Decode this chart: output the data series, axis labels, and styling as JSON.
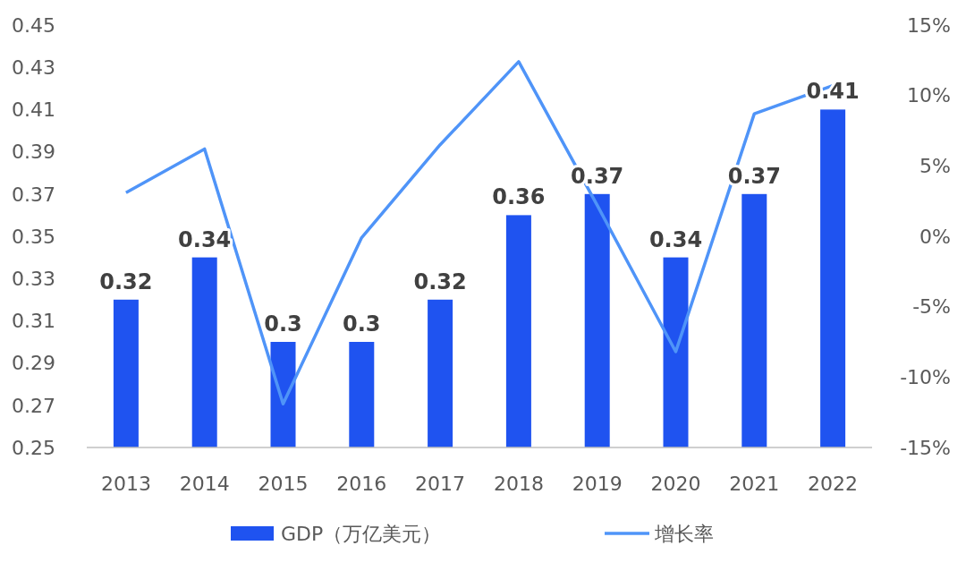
{
  "chart_data": {
    "type": "bar",
    "categories": [
      "2013",
      "2014",
      "2015",
      "2016",
      "2017",
      "2018",
      "2019",
      "2020",
      "2021",
      "2022"
    ],
    "series": [
      {
        "name": "GDP（万亿美元）",
        "color": "#1f53f0",
        "values": [
          0.32,
          0.34,
          0.3,
          0.3,
          0.32,
          0.36,
          0.37,
          0.34,
          0.37,
          0.41
        ],
        "value_labels": [
          "0.32",
          "0.34",
          "0.3",
          "0.3",
          "0.32",
          "0.36",
          "0.37",
          "0.34",
          "0.37",
          "0.41"
        ]
      },
      {
        "name": "增长率",
        "type": "line",
        "axis": "y2",
        "color": "#4f94f8",
        "values": [
          3.1,
          6.2,
          -11.9,
          -0.1,
          6.5,
          12.4,
          2.2,
          -8.2,
          8.7,
          10.7
        ]
      }
    ],
    "ylim": [
      0.25,
      0.45
    ],
    "yticks": [
      0.25,
      0.27,
      0.29,
      0.31,
      0.33,
      0.35,
      0.37,
      0.39,
      0.41,
      0.43,
      0.45
    ],
    "y2lim": [
      -15,
      15
    ],
    "y2ticks": [
      {
        "value": -15,
        "label": "-15%"
      },
      {
        "value": -10,
        "label": "-10%"
      },
      {
        "value": -5,
        "label": "-5%"
      },
      {
        "value": 0,
        "label": "0%"
      },
      {
        "value": 5,
        "label": "5%"
      },
      {
        "value": 10,
        "label": "10%"
      },
      {
        "value": 15,
        "label": "15%"
      }
    ],
    "legend": "bottom",
    "grid": false,
    "marker": "none"
  }
}
